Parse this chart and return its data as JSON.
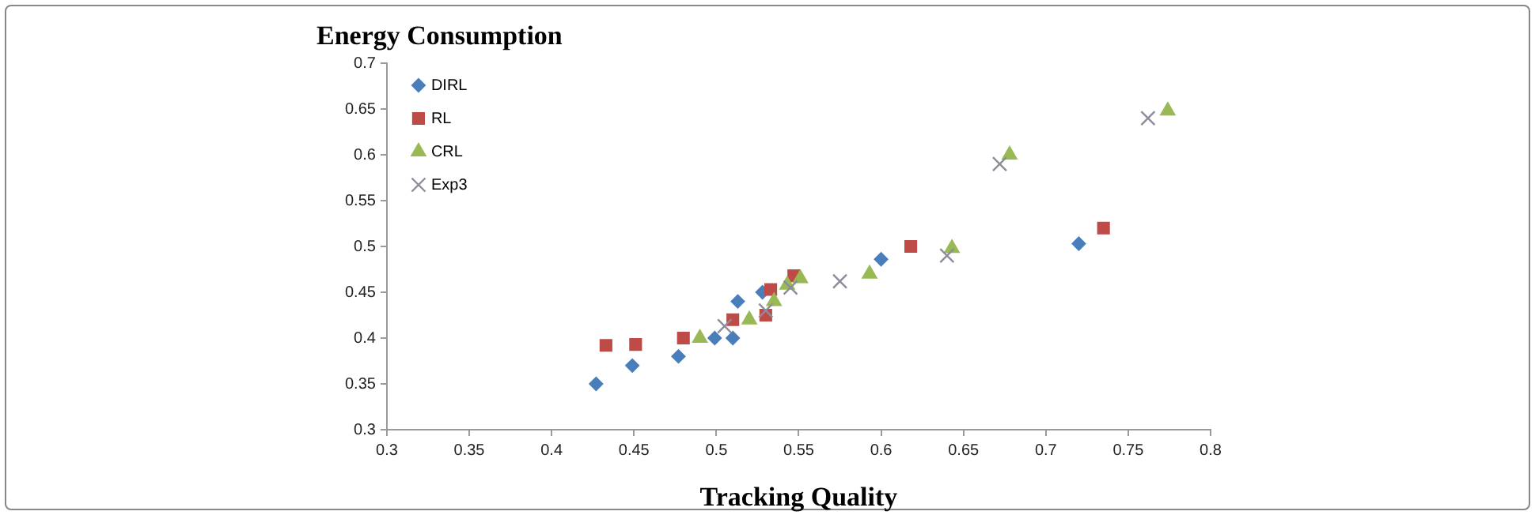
{
  "chart_data": {
    "type": "scatter",
    "ylabel": "Energy Consumption",
    "xlabel": "Tracking Quality",
    "xlim": [
      0.3,
      0.8
    ],
    "xticks": [
      0.3,
      0.35,
      0.4,
      0.45,
      0.5,
      0.55,
      0.6,
      0.65,
      0.7,
      0.75,
      0.8
    ],
    "ylim": [
      0.3,
      0.7
    ],
    "yticks": [
      0.3,
      0.35,
      0.4,
      0.45,
      0.5,
      0.55,
      0.6,
      0.65,
      0.7
    ],
    "grid": false,
    "legend": "top left",
    "series": [
      {
        "name": "DIRL",
        "color": "#4a7ebb",
        "marker": "diamond",
        "x": [
          0.427,
          0.449,
          0.477,
          0.499,
          0.51,
          0.513,
          0.528,
          0.6,
          0.72
        ],
        "values": [
          0.35,
          0.37,
          0.38,
          0.4,
          0.4,
          0.44,
          0.45,
          0.486,
          0.503
        ]
      },
      {
        "name": "RL",
        "color": "#be4b48",
        "marker": "square",
        "x": [
          0.433,
          0.451,
          0.48,
          0.51,
          0.53,
          0.533,
          0.547,
          0.618,
          0.735
        ],
        "values": [
          0.392,
          0.393,
          0.4,
          0.42,
          0.425,
          0.453,
          0.468,
          0.5,
          0.52
        ]
      },
      {
        "name": "CRL",
        "color": "#98b954",
        "marker": "triangle",
        "x": [
          0.49,
          0.52,
          0.535,
          0.543,
          0.551,
          0.593,
          0.643,
          0.678,
          0.774
        ],
        "values": [
          0.4,
          0.42,
          0.44,
          0.458,
          0.465,
          0.47,
          0.498,
          0.6,
          0.648
        ]
      },
      {
        "name": "Exp3",
        "color": "#8c8c9c",
        "marker": "cross",
        "x": [
          0.505,
          0.53,
          0.545,
          0.575,
          0.64,
          0.672,
          0.762
        ],
        "values": [
          0.413,
          0.43,
          0.455,
          0.462,
          0.49,
          0.59,
          0.64
        ]
      }
    ]
  }
}
